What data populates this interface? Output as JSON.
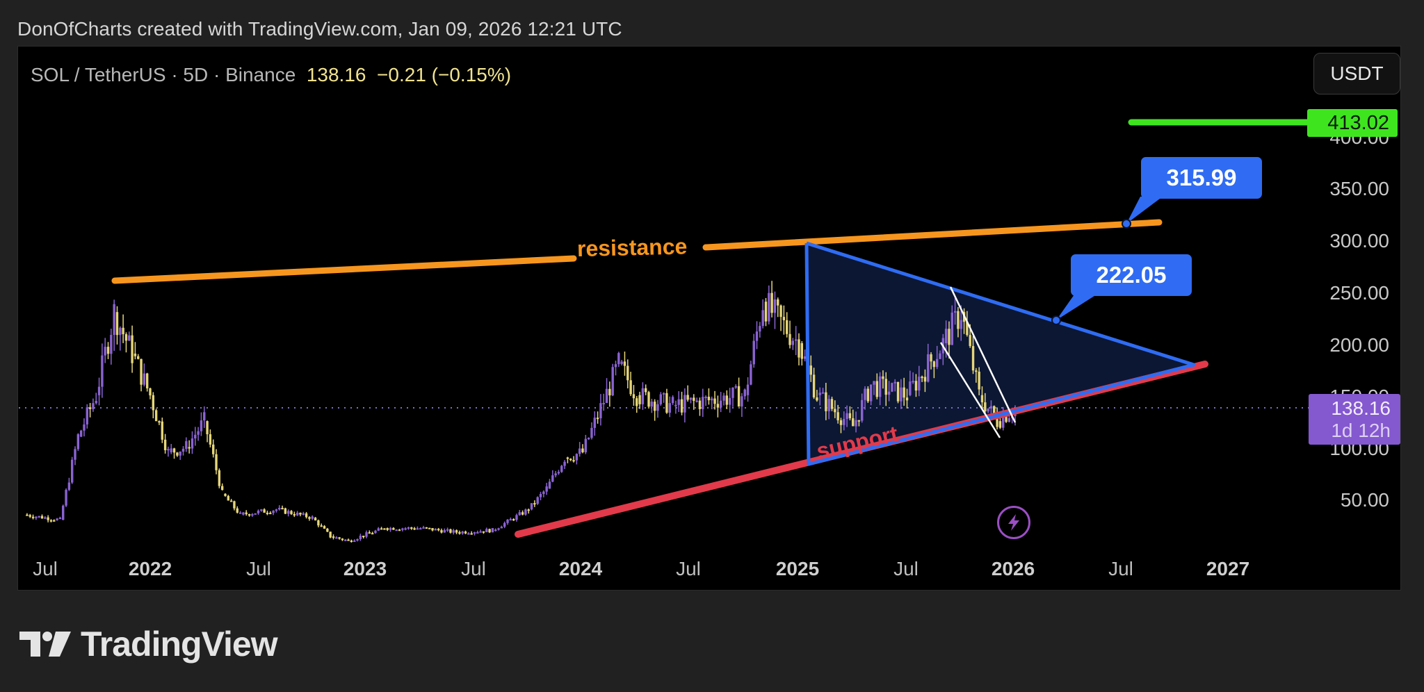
{
  "header": {
    "credit": "DonOfCharts created with TradingView.com, Jan 09, 2026 12:21 UTC"
  },
  "legend": {
    "symbol": "SOL / TetherUS · 5D · Binance",
    "last_price": "138.16",
    "change": "−0.21 (−0.15%)"
  },
  "toolbar": {
    "currency_button": "USDT"
  },
  "price_axis": {
    "labels": [
      "400.00",
      "350.00",
      "300.00",
      "250.00",
      "200.00",
      "150.00",
      "100.00",
      "50.00"
    ]
  },
  "time_axis": {
    "labels": [
      {
        "text": "Jul",
        "year": false
      },
      {
        "text": "2022",
        "year": true
      },
      {
        "text": "Jul",
        "year": false
      },
      {
        "text": "2023",
        "year": true
      },
      {
        "text": "Jul",
        "year": false
      },
      {
        "text": "2024",
        "year": true
      },
      {
        "text": "Jul",
        "year": false
      },
      {
        "text": "2025",
        "year": true
      },
      {
        "text": "Jul",
        "year": false
      },
      {
        "text": "2026",
        "year": true
      },
      {
        "text": "Jul",
        "year": false
      },
      {
        "text": "2027",
        "year": true
      }
    ]
  },
  "tags": {
    "target_line": "413.02",
    "current_price": "138.16",
    "countdown": "1d 12h"
  },
  "annotations": {
    "resistance_label": "resistance",
    "support_label": "support",
    "callout_upper": "315.99",
    "callout_lower": "222.05"
  },
  "footer": {
    "brand": "TradingView"
  },
  "colors": {
    "background": "#000000",
    "frame": "#212121",
    "up_candle": "#8a63d2",
    "down_candle": "#e6d67a",
    "resistance": "#f7961e",
    "support": "#e23a4a",
    "triangle": "#2f6cf3",
    "triangle_fill": "#0c1733",
    "target_line": "#3ee51f",
    "price_tag": "#8458cf",
    "channel": "#ffffff"
  },
  "chart_data": {
    "type": "candlestick",
    "title": "SOL / TetherUS · 5D · Binance",
    "symbol": "SOLUSDT",
    "timeframe": "5D",
    "exchange": "Binance",
    "last": 138.16,
    "change": -0.21,
    "change_pct": -0.15,
    "ylabel": "USDT",
    "ylim": [
      0,
      450
    ],
    "y_ticks": [
      50,
      100,
      150,
      200,
      250,
      300,
      350,
      400
    ],
    "x_ticks": [
      "Jul 2021",
      "2022",
      "Jul 2022",
      "2023",
      "Jul 2023",
      "2024",
      "Jul 2024",
      "2025",
      "Jul 2025",
      "2026",
      "Jul 2026",
      "2027"
    ],
    "grid": false,
    "approx_close_series": {
      "x": [
        "2021-06",
        "2021-08",
        "2021-09",
        "2021-10",
        "2021-11",
        "2021-12",
        "2022-01",
        "2022-02",
        "2022-03",
        "2022-04",
        "2022-05",
        "2022-06",
        "2022-08",
        "2022-10",
        "2022-11",
        "2022-12",
        "2023-02",
        "2023-04",
        "2023-06",
        "2023-08",
        "2023-10",
        "2023-11",
        "2023-12",
        "2024-01",
        "2024-03",
        "2024-04",
        "2024-06",
        "2024-08",
        "2024-10",
        "2024-11",
        "2025-01",
        "2025-02",
        "2025-04",
        "2025-05",
        "2025-07",
        "2025-09",
        "2025-10",
        "2025-11",
        "2025-12",
        "2026-01"
      ],
      "close": [
        35,
        30,
        110,
        150,
        230,
        190,
        150,
        95,
        100,
        125,
        55,
        35,
        40,
        32,
        14,
        10,
        22,
        22,
        18,
        20,
        40,
        60,
        90,
        95,
        180,
        150,
        140,
        145,
        150,
        240,
        200,
        150,
        120,
        160,
        150,
        200,
        230,
        150,
        125,
        138
      ]
    },
    "drawings": [
      {
        "type": "trendline",
        "name": "resistance",
        "from": {
          "x": "2021-11",
          "y": 259
        },
        "to": {
          "x": "2026-12",
          "y": 318
        }
      },
      {
        "type": "trendline",
        "name": "support",
        "from": {
          "x": "2023-10",
          "y": 18
        },
        "to": {
          "x": "2026-12",
          "y": 180
        }
      },
      {
        "type": "triangle",
        "name": "symmetrical-triangle",
        "points": [
          {
            "x": "2025-01",
            "y": 295
          },
          {
            "x": "2025-01",
            "y": 87
          },
          {
            "x": "2026-11",
            "y": 177
          }
        ]
      },
      {
        "type": "horizontal-ray",
        "name": "target",
        "y": 413.02
      },
      {
        "type": "callout",
        "y": 315.99
      },
      {
        "type": "callout",
        "y": 222.05
      },
      {
        "type": "channel",
        "name": "descending-channel",
        "x": [
          "2025-09",
          "2026-01"
        ]
      }
    ]
  }
}
